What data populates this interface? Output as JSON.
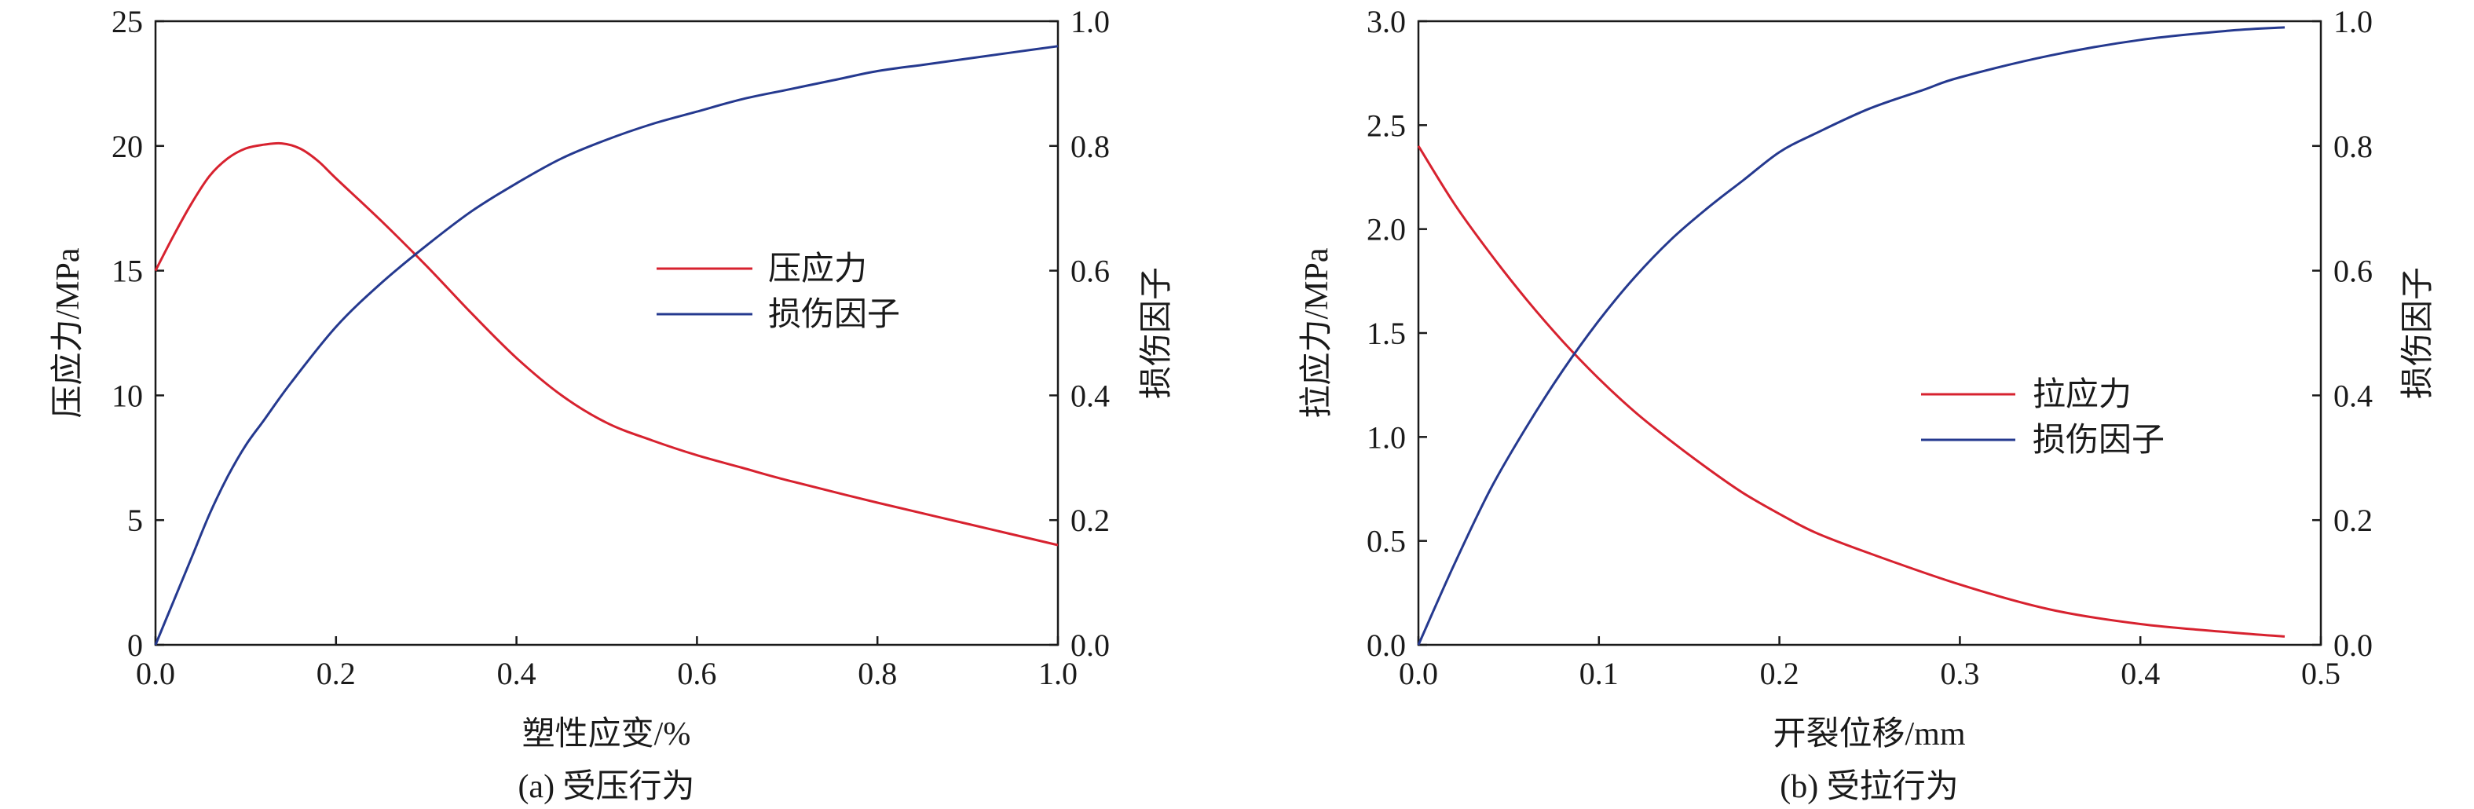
{
  "colors": {
    "red_series": "#d7222f",
    "blue_series": "#25398f",
    "axis": "#1a1a1a"
  },
  "chart_data": [
    {
      "type": "line",
      "caption": "(a) 受压行为",
      "xlabel": "塑性应变/%",
      "ylabel_left": "压应力/MPa",
      "ylabel_right": "损伤因子",
      "xlim": [
        0.0,
        1.0
      ],
      "ylim_left": [
        0,
        25
      ],
      "ylim_right": [
        0.0,
        1.0
      ],
      "x_ticks": [
        "0.0",
        "0.2",
        "0.4",
        "0.6",
        "0.8",
        "1.0"
      ],
      "y_left_ticks": [
        "0",
        "5",
        "10",
        "15",
        "20",
        "25"
      ],
      "y_right_ticks": [
        "0.0",
        "0.2",
        "0.4",
        "0.6",
        "0.8",
        "1.0"
      ],
      "grid": false,
      "legend_position": "center-right",
      "series": [
        {
          "name": "压应力",
          "axis": "left",
          "color": "#d7222f",
          "x": [
            0.0,
            0.02,
            0.04,
            0.06,
            0.08,
            0.1,
            0.12,
            0.14,
            0.16,
            0.18,
            0.2,
            0.25,
            0.3,
            0.35,
            0.4,
            0.45,
            0.5,
            0.55,
            0.6,
            0.65,
            0.7,
            0.8,
            0.9,
            1.0
          ],
          "y": [
            15.0,
            16.4,
            17.7,
            18.8,
            19.5,
            19.9,
            20.05,
            20.1,
            19.9,
            19.4,
            18.7,
            17.0,
            15.2,
            13.3,
            11.5,
            10.0,
            8.9,
            8.2,
            7.6,
            7.1,
            6.6,
            5.7,
            4.85,
            4.0
          ]
        },
        {
          "name": "损伤因子",
          "axis": "right",
          "color": "#25398f",
          "x": [
            0.0,
            0.02,
            0.04,
            0.06,
            0.08,
            0.1,
            0.12,
            0.15,
            0.2,
            0.25,
            0.3,
            0.35,
            0.4,
            0.45,
            0.5,
            0.55,
            0.6,
            0.65,
            0.7,
            0.75,
            0.8,
            0.85,
            0.9,
            0.95,
            1.0
          ],
          "y": [
            0.0,
            0.07,
            0.14,
            0.21,
            0.27,
            0.32,
            0.36,
            0.42,
            0.51,
            0.58,
            0.64,
            0.695,
            0.74,
            0.78,
            0.81,
            0.835,
            0.855,
            0.875,
            0.89,
            0.905,
            0.92,
            0.93,
            0.94,
            0.95,
            0.96
          ]
        }
      ]
    },
    {
      "type": "line",
      "caption": "(b) 受拉行为",
      "xlabel": "开裂位移/mm",
      "ylabel_left": "拉应力/MPa",
      "ylabel_right": "损伤因子",
      "xlim": [
        0.0,
        0.5
      ],
      "ylim_left": [
        0.0,
        3.0
      ],
      "ylim_right": [
        0.0,
        1.0
      ],
      "x_ticks": [
        "0.0",
        "0.1",
        "0.2",
        "0.3",
        "0.4",
        "0.5"
      ],
      "y_left_ticks": [
        "0.0",
        "0.5",
        "1.0",
        "1.5",
        "2.0",
        "2.5",
        "3.0"
      ],
      "y_right_ticks": [
        "0.0",
        "0.2",
        "0.4",
        "0.6",
        "0.8",
        "1.0"
      ],
      "grid": false,
      "legend_position": "center-right",
      "series": [
        {
          "name": "拉应力",
          "axis": "left",
          "color": "#d7222f",
          "x": [
            0.0,
            0.02,
            0.04,
            0.06,
            0.08,
            0.1,
            0.12,
            0.14,
            0.16,
            0.18,
            0.2,
            0.22,
            0.25,
            0.3,
            0.35,
            0.4,
            0.45,
            0.48
          ],
          "y": [
            2.4,
            2.12,
            1.88,
            1.66,
            1.46,
            1.28,
            1.12,
            0.98,
            0.85,
            0.73,
            0.63,
            0.54,
            0.44,
            0.29,
            0.17,
            0.1,
            0.06,
            0.04
          ]
        },
        {
          "name": "损伤因子",
          "axis": "right",
          "color": "#25398f",
          "x": [
            0.0,
            0.02,
            0.04,
            0.06,
            0.08,
            0.1,
            0.12,
            0.14,
            0.16,
            0.18,
            0.2,
            0.22,
            0.25,
            0.28,
            0.3,
            0.35,
            0.4,
            0.45,
            0.48
          ],
          "y": [
            0.0,
            0.13,
            0.25,
            0.35,
            0.44,
            0.52,
            0.59,
            0.65,
            0.7,
            0.745,
            0.79,
            0.82,
            0.86,
            0.89,
            0.91,
            0.945,
            0.97,
            0.985,
            0.99
          ]
        }
      ]
    }
  ]
}
